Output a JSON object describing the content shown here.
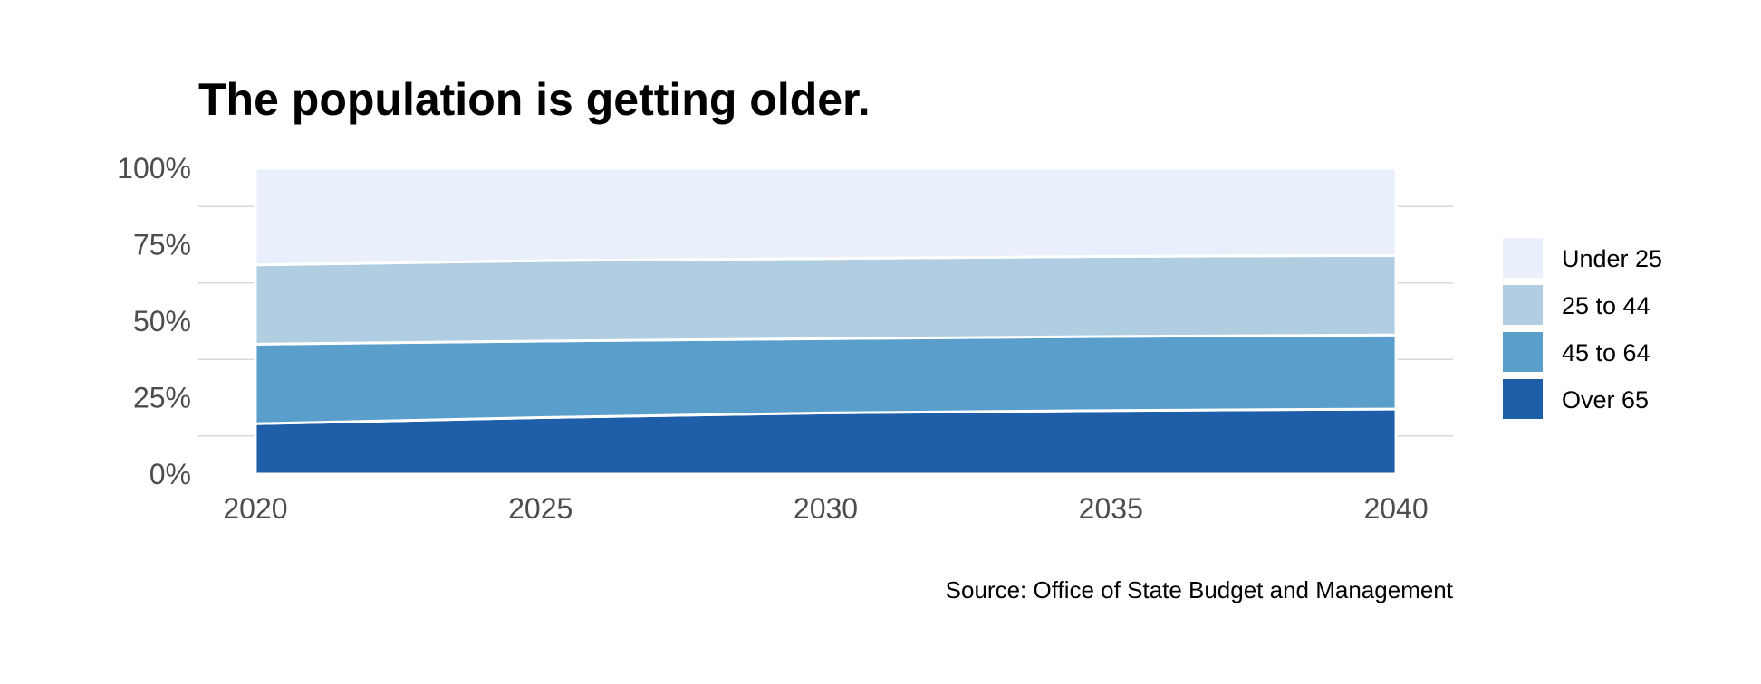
{
  "chart_data": {
    "type": "area",
    "stacked": true,
    "normalized": true,
    "title": "The population is getting older.",
    "caption": "Source: Office of State Budget and Management",
    "xlabel": "",
    "ylabel": "",
    "x": [
      2020,
      2025,
      2030,
      2035,
      2040
    ],
    "x_ticks": [
      "2020",
      "2025",
      "2030",
      "2035",
      "2040"
    ],
    "x_range": [
      2019,
      2041
    ],
    "y_ticks": [
      "0%",
      "25%",
      "50%",
      "75%",
      "100%"
    ],
    "ylim": [
      0,
      100
    ],
    "grid": true,
    "legend_position": "right",
    "series": [
      {
        "name": "Over 65",
        "color": "#1f5ea8",
        "values": [
          16.5,
          18.5,
          20,
          20.8,
          21.3
        ]
      },
      {
        "name": "45 to 64",
        "color": "#5a9fcc",
        "values": [
          26,
          25,
          24.3,
          24.2,
          24.2
        ]
      },
      {
        "name": "25 to 44",
        "color": "#b0cde1",
        "values": [
          25.9,
          26.3,
          26.2,
          26.2,
          26
        ]
      },
      {
        "name": "Under 25",
        "color": "#e9f0fc",
        "values": [
          31.6,
          30.2,
          29.5,
          28.8,
          28.5
        ]
      }
    ],
    "legend_order": [
      "Under 25",
      "25 to 44",
      "45 to 64",
      "Over 65"
    ]
  }
}
